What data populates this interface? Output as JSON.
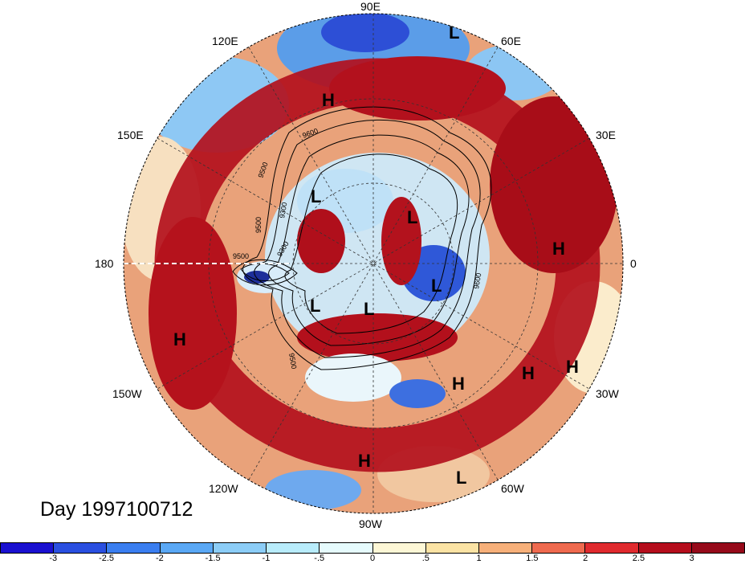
{
  "title": "Day 1997100712",
  "longitude_labels": [
    "90E",
    "60E",
    "30E",
    "0",
    "30W",
    "60W",
    "90W",
    "120W",
    "150W",
    "180",
    "150E",
    "120E"
  ],
  "contour_labels": [
    "9600",
    "9500",
    "9300",
    "9500",
    "9300",
    "9500",
    "9500",
    "9600"
  ],
  "pressure_centers": [
    {
      "type": "L"
    },
    {
      "type": "H"
    },
    {
      "type": "L"
    },
    {
      "type": "L"
    },
    {
      "type": "L"
    },
    {
      "type": "L"
    },
    {
      "type": "L"
    },
    {
      "type": "H"
    },
    {
      "type": "H"
    },
    {
      "type": "H"
    },
    {
      "type": "H"
    },
    {
      "type": "H"
    },
    {
      "type": "H"
    },
    {
      "type": "L"
    }
  ],
  "colorbar": {
    "ticks": [
      "-3",
      "-2.5",
      "-2",
      "-1.5",
      "-1",
      "-.5",
      "0",
      ".5",
      "1",
      "1.5",
      "2",
      "2.5",
      "3"
    ],
    "colors": [
      "#1a10d0",
      "#2a4fe0",
      "#3a7ef0",
      "#5aa8f5",
      "#8ccdf7",
      "#b8ecfb",
      "#e6fbfd",
      "#fdf7d6",
      "#fbe3a4",
      "#f7b07a",
      "#ef6a4f",
      "#e02a2e",
      "#b50d1c",
      "#960a1a"
    ]
  }
}
